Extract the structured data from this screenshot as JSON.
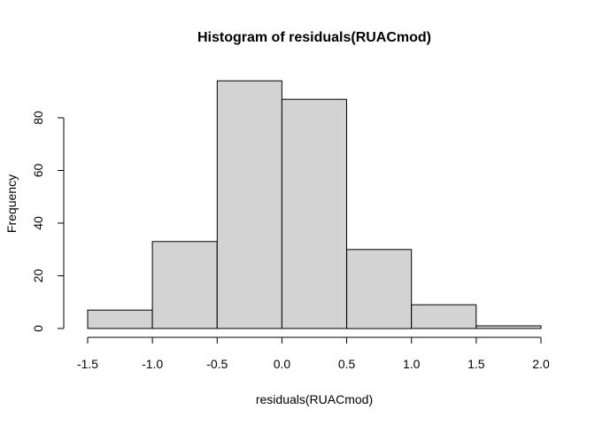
{
  "chart_data": {
    "type": "bar",
    "title": "Histogram of residuals(RUACmod)",
    "xlabel": "residuals(RUACmod)",
    "ylabel": "Frequency",
    "bins": [
      {
        "from": -1.5,
        "to": -1.0,
        "count": 7
      },
      {
        "from": -1.0,
        "to": -0.5,
        "count": 33
      },
      {
        "from": -0.5,
        "to": 0.0,
        "count": 94
      },
      {
        "from": 0.0,
        "to": 0.5,
        "count": 87
      },
      {
        "from": 0.5,
        "to": 1.0,
        "count": 30
      },
      {
        "from": 1.0,
        "to": 1.5,
        "count": 9
      },
      {
        "from": 1.5,
        "to": 2.0,
        "count": 1
      }
    ],
    "xlim": [
      -1.5,
      2.0
    ],
    "ylim": [
      0,
      94
    ],
    "xticks": [
      -1.5,
      -1.0,
      -0.5,
      0.0,
      0.5,
      1.0,
      1.5,
      2.0
    ],
    "xtick_labels": [
      "-1.5",
      "-1.0",
      "-0.5",
      "0.0",
      "0.5",
      "1.0",
      "1.5",
      "2.0"
    ],
    "yticks": [
      0,
      20,
      40,
      60,
      80
    ],
    "ytick_labels": [
      "0",
      "20",
      "40",
      "60",
      "80"
    ],
    "bar_color": "#d3d3d3",
    "edge_color": "#000000",
    "grid": false,
    "legend": "none"
  }
}
